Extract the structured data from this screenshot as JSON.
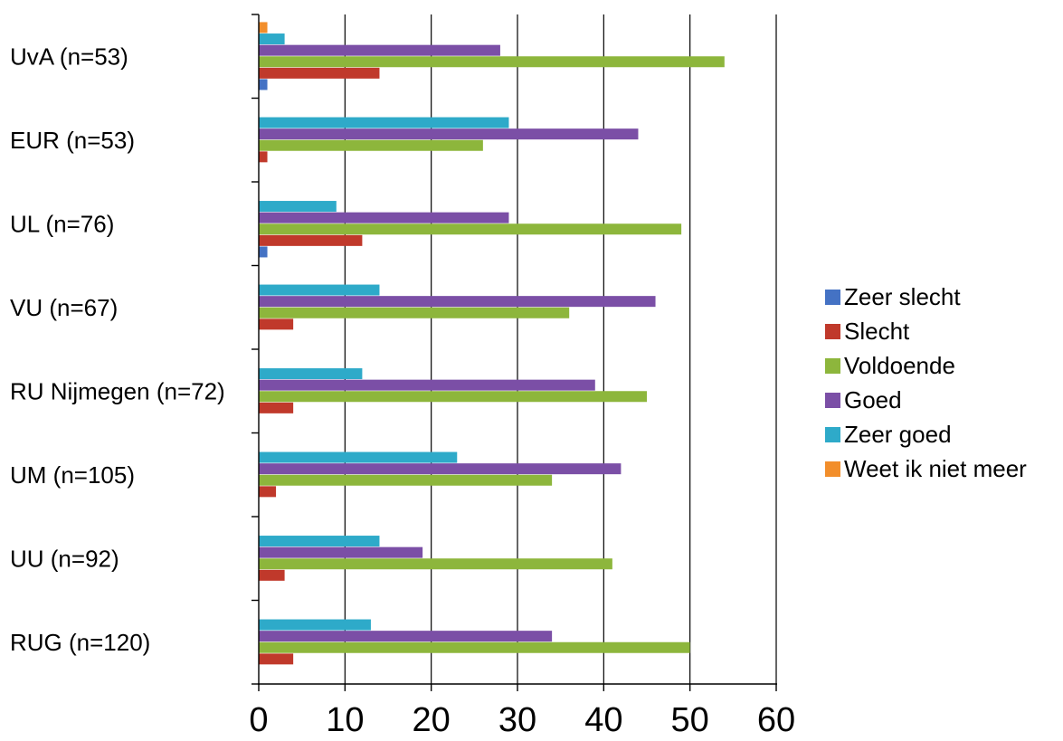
{
  "chart_data": {
    "type": "bar",
    "orientation": "horizontal",
    "categories": [
      "UvA (n=53)",
      "EUR (n=53)",
      "UL (n=76)",
      "VU (n=67)",
      "RU Nijmegen (n=72)",
      "UM (n=105)",
      "UU (n=92)",
      "RUG (n=120)"
    ],
    "series": [
      {
        "name": "Zeer slecht",
        "color": "#4472C4",
        "values": [
          1,
          0,
          1,
          0,
          0,
          0,
          0,
          0
        ]
      },
      {
        "name": "Slecht",
        "color": "#C0392B",
        "values": [
          14,
          1,
          12,
          4,
          4,
          2,
          3,
          4
        ]
      },
      {
        "name": "Voldoende",
        "color": "#8DB63C",
        "values": [
          54,
          26,
          49,
          36,
          45,
          34,
          41,
          50
        ]
      },
      {
        "name": "Goed",
        "color": "#7B4FA6",
        "values": [
          28,
          44,
          29,
          46,
          39,
          42,
          19,
          34
        ]
      },
      {
        "name": "Zeer goed",
        "color": "#2EAAC9",
        "values": [
          3,
          29,
          9,
          14,
          12,
          23,
          14,
          13
        ]
      },
      {
        "name": "Weet ik niet meer",
        "color": "#F28E2B",
        "values": [
          1,
          0,
          0,
          0,
          0,
          0,
          0,
          0
        ]
      }
    ],
    "xlim": [
      0,
      60
    ],
    "xticks": [
      0,
      10,
      20,
      30,
      40,
      50,
      60
    ],
    "grid": true,
    "legend": "right"
  }
}
